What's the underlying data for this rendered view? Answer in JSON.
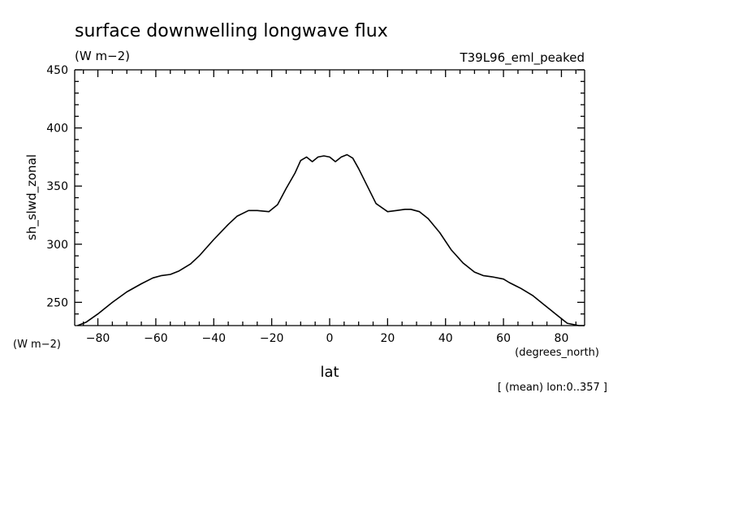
{
  "chart_data": {
    "type": "line",
    "title": "surface downwelling longwave flux",
    "subtitle": "(W m−2)",
    "dataset_label": "T39L96_eml_peaked",
    "xlabel": "lat",
    "x_units": "(degrees_north)",
    "ylabel": "sh_slwd_zonal",
    "y_units": "(W m−2)",
    "footnote": "[ (mean) lon:0..357 ]",
    "xlim": [
      -88,
      88
    ],
    "ylim": [
      230,
      450
    ],
    "x_ticks": [
      -80,
      -60,
      -40,
      -20,
      0,
      20,
      40,
      60,
      80
    ],
    "x_tick_labels": [
      "−80",
      "−60",
      "−40",
      "−20",
      "0",
      "20",
      "40",
      "60",
      "80"
    ],
    "y_ticks": [
      250,
      300,
      350,
      400,
      450
    ],
    "y_tick_labels": [
      "250",
      "300",
      "350",
      "400",
      "450"
    ],
    "grid": false,
    "series": [
      {
        "x": [
          -87,
          -84,
          -80,
          -75,
          -70,
          -65,
          -61,
          -58,
          -55,
          -52,
          -48,
          -45,
          -40,
          -35,
          -32,
          -28,
          -25,
          -21,
          -18,
          -15,
          -12,
          -10,
          -8,
          -6,
          -4,
          -2,
          0,
          2,
          4,
          6,
          8,
          10,
          13,
          16,
          20,
          23,
          26,
          28,
          31,
          34,
          38,
          42,
          46,
          50,
          53,
          56,
          60,
          62,
          66,
          70,
          74,
          78,
          82,
          86,
          88
        ],
        "y": [
          230,
          233,
          240,
          250,
          259,
          266,
          271,
          273,
          274,
          277,
          283,
          290,
          304,
          317,
          324,
          329,
          329,
          328,
          334,
          348,
          361,
          372,
          375,
          371,
          375,
          376,
          375,
          371,
          375,
          377,
          374,
          365,
          350,
          335,
          328,
          329,
          330,
          330,
          328,
          322,
          310,
          295,
          284,
          276,
          273,
          272,
          270,
          267,
          262,
          256,
          248,
          240,
          232,
          230,
          229
        ]
      }
    ]
  }
}
